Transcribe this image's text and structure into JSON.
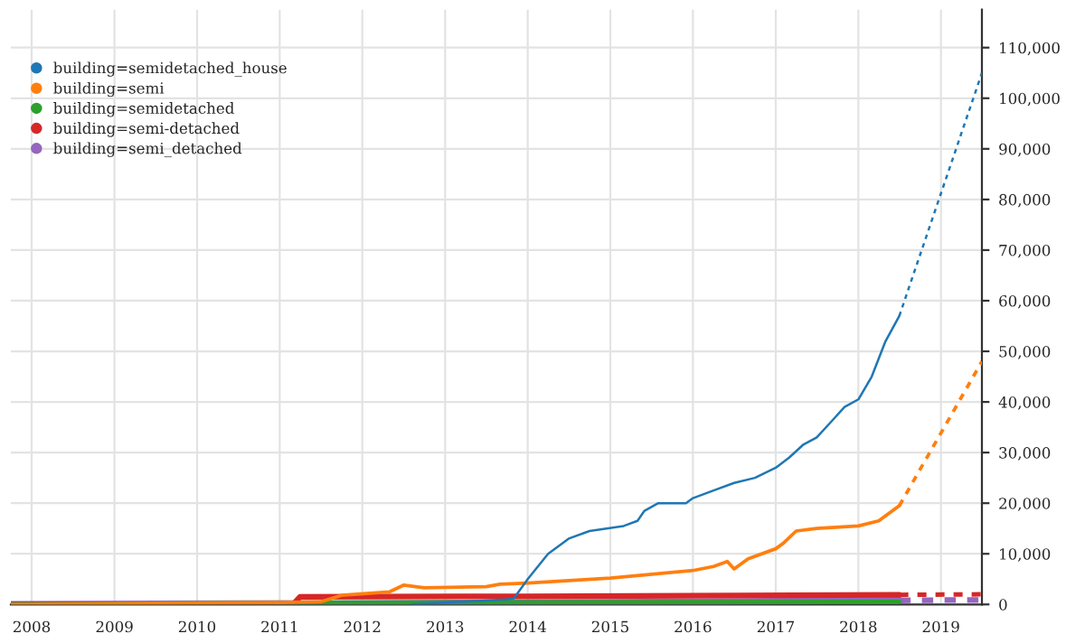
{
  "chart_data": {
    "type": "line",
    "legend": "top left",
    "grid": true,
    "line_style": "solid",
    "xlim": [
      "2007-10",
      "2019-07"
    ],
    "ylim": [
      0,
      117500
    ],
    "xticks": [
      {
        "value": "2008-01",
        "label": "2008"
      },
      {
        "value": "2009-01",
        "label": "2009"
      },
      {
        "value": "2010-01",
        "label": "2010"
      },
      {
        "value": "2011-01",
        "label": "2011"
      },
      {
        "value": "2012-01",
        "label": "2012"
      },
      {
        "value": "2013-01",
        "label": "2013"
      },
      {
        "value": "2014-01",
        "label": "2014"
      },
      {
        "value": "2015-01",
        "label": "2015"
      },
      {
        "value": "2016-01",
        "label": "2016"
      },
      {
        "value": "2017-01",
        "label": "2017"
      },
      {
        "value": "2018-01",
        "label": "2018"
      },
      {
        "value": "2019-01",
        "label": "2019"
      }
    ],
    "yticks": [
      {
        "value": 0,
        "label": "0"
      },
      {
        "value": 10000,
        "label": "10,000"
      },
      {
        "value": 20000,
        "label": "20,000"
      },
      {
        "value": 30000,
        "label": "30,000"
      },
      {
        "value": 40000,
        "label": "40,000"
      },
      {
        "value": 50000,
        "label": "50,000"
      },
      {
        "value": 60000,
        "label": "60,000"
      },
      {
        "value": 70000,
        "label": "70,000"
      },
      {
        "value": 80000,
        "label": "80,000"
      },
      {
        "value": 90000,
        "label": "90,000"
      },
      {
        "value": 100000,
        "label": "100,000"
      },
      {
        "value": 110000,
        "label": "110,000"
      }
    ],
    "series": [
      {
        "name": "building=semidetached_house",
        "color": "#1f77b4",
        "x": [
          "2012-08",
          "2013-10",
          "2013-11",
          "2014-01",
          "2014-04",
          "2014-07",
          "2014-10",
          "2015-03",
          "2015-05",
          "2015-06",
          "2015-08",
          "2015-12",
          "2016-01",
          "2016-04",
          "2016-07",
          "2016-10",
          "2017-01",
          "2017-03",
          "2017-05",
          "2017-07",
          "2017-09",
          "2017-11",
          "2018-01",
          "2018-03",
          "2018-05",
          "2018-07"
        ],
        "values": [
          0,
          1000,
          1200,
          5000,
          10000,
          13000,
          14500,
          15500,
          16500,
          18500,
          20000,
          20000,
          21000,
          22500,
          24000,
          25000,
          27000,
          29000,
          31500,
          33000,
          36000,
          39000,
          40500,
          45000,
          52000,
          57000
        ]
      },
      {
        "name": "building=semi",
        "color": "#ff7f0e",
        "x": [
          "2007-10",
          "2010-01",
          "2011-01",
          "2011-07",
          "2011-10",
          "2012-05",
          "2012-07",
          "2012-10",
          "2013-07",
          "2013-09",
          "2014-01",
          "2015-01",
          "2016-01",
          "2016-04",
          "2016-06",
          "2016-07",
          "2016-09",
          "2017-01",
          "2017-02",
          "2017-04",
          "2017-07",
          "2018-01",
          "2018-04",
          "2018-06",
          "2018-07"
        ],
        "values": [
          0,
          300,
          400,
          500,
          1800,
          2500,
          3800,
          3300,
          3500,
          4000,
          4200,
          5200,
          6700,
          7500,
          8500,
          7000,
          9000,
          11000,
          12000,
          14500,
          15000,
          15500,
          16500,
          18500,
          19500
        ]
      },
      {
        "name": "building=semidetached",
        "color": "#2ca02c",
        "x": [
          "2007-10",
          "2011-08",
          "2014-01",
          "2018-07"
        ],
        "values": [
          0,
          300,
          400,
          500
        ]
      },
      {
        "name": "building=semi-detached",
        "color": "#d62728",
        "x": [
          "2007-10",
          "2011-03",
          "2011-04",
          "2014-01",
          "2018-07"
        ],
        "values": [
          0,
          0,
          1500,
          1600,
          1900
        ]
      },
      {
        "name": "building=semi_detached",
        "color": "#9467bd",
        "x": [
          "2007-10",
          "2012-01",
          "2015-01",
          "2018-07"
        ],
        "values": [
          0,
          200,
          400,
          800
        ]
      },
      {
        "color": "#1f77b4",
        "line_style": "dashed",
        "x": [
          "2018-07",
          "2019-07"
        ],
        "values": [
          57000,
          105000
        ]
      },
      {
        "color": "#ff7f0e",
        "line_style": "dashed",
        "x": [
          "2018-07",
          "2019-07"
        ],
        "values": [
          19500,
          48000
        ]
      },
      {
        "color": "#d62728",
        "line_style": "dashed",
        "x": [
          "2018-07",
          "2019-07"
        ],
        "values": [
          1900,
          2000
        ]
      },
      {
        "color": "#9467bd",
        "line_style": "dashed",
        "x": [
          "2018-07",
          "2019-07"
        ],
        "values": [
          800,
          900
        ]
      }
    ]
  }
}
